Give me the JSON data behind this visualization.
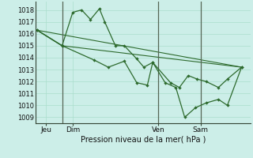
{
  "background_color": "#cceee8",
  "grid_color": "#aaddcc",
  "line_color": "#2d6a2d",
  "ylabel_ticks": [
    1009,
    1010,
    1011,
    1012,
    1013,
    1014,
    1015,
    1016,
    1017,
    1018
  ],
  "ylim": [
    1008.5,
    1018.7
  ],
  "xlim": [
    -0.1,
    12.0
  ],
  "xlabel": "Pression niveau de la mer( hPa )",
  "xtick_labels": [
    "Jeu",
    "Dim",
    "Ven",
    "Sam"
  ],
  "xtick_positions": [
    0.5,
    2.0,
    6.8,
    9.2
  ],
  "vlines_x": [
    1.4,
    6.8,
    9.2
  ],
  "series": [
    {
      "x": [
        0.0,
        1.4,
        3.2,
        4.0,
        4.9,
        5.6,
        6.2,
        6.5,
        7.2,
        7.8,
        8.3,
        8.9,
        9.5,
        10.2,
        10.7,
        11.5
      ],
      "y": [
        1016.3,
        1015.0,
        1013.8,
        1013.2,
        1013.7,
        1011.9,
        1011.7,
        1013.6,
        1011.9,
        1011.5,
        1009.0,
        1009.8,
        1010.2,
        1010.5,
        1010.0,
        1013.2
      ],
      "marker": true
    },
    {
      "x": [
        0.0,
        1.4,
        2.0,
        2.5,
        3.0,
        3.5,
        3.8,
        4.4,
        4.9,
        5.6,
        6.0,
        6.5,
        7.5,
        8.0,
        8.5,
        9.0,
        9.5,
        10.2,
        10.7,
        11.5
      ],
      "y": [
        1016.3,
        1015.0,
        1017.8,
        1018.0,
        1017.2,
        1018.1,
        1017.0,
        1015.0,
        1015.0,
        1013.9,
        1013.2,
        1013.6,
        1011.9,
        1011.5,
        1012.5,
        1012.2,
        1012.0,
        1011.5,
        1012.2,
        1013.2
      ],
      "marker": true
    },
    {
      "x": [
        0.0,
        1.4,
        11.5
      ],
      "y": [
        1016.3,
        1015.0,
        1013.2
      ],
      "marker": false
    },
    {
      "x": [
        0.0,
        11.5
      ],
      "y": [
        1016.3,
        1013.2
      ],
      "marker": false
    }
  ]
}
